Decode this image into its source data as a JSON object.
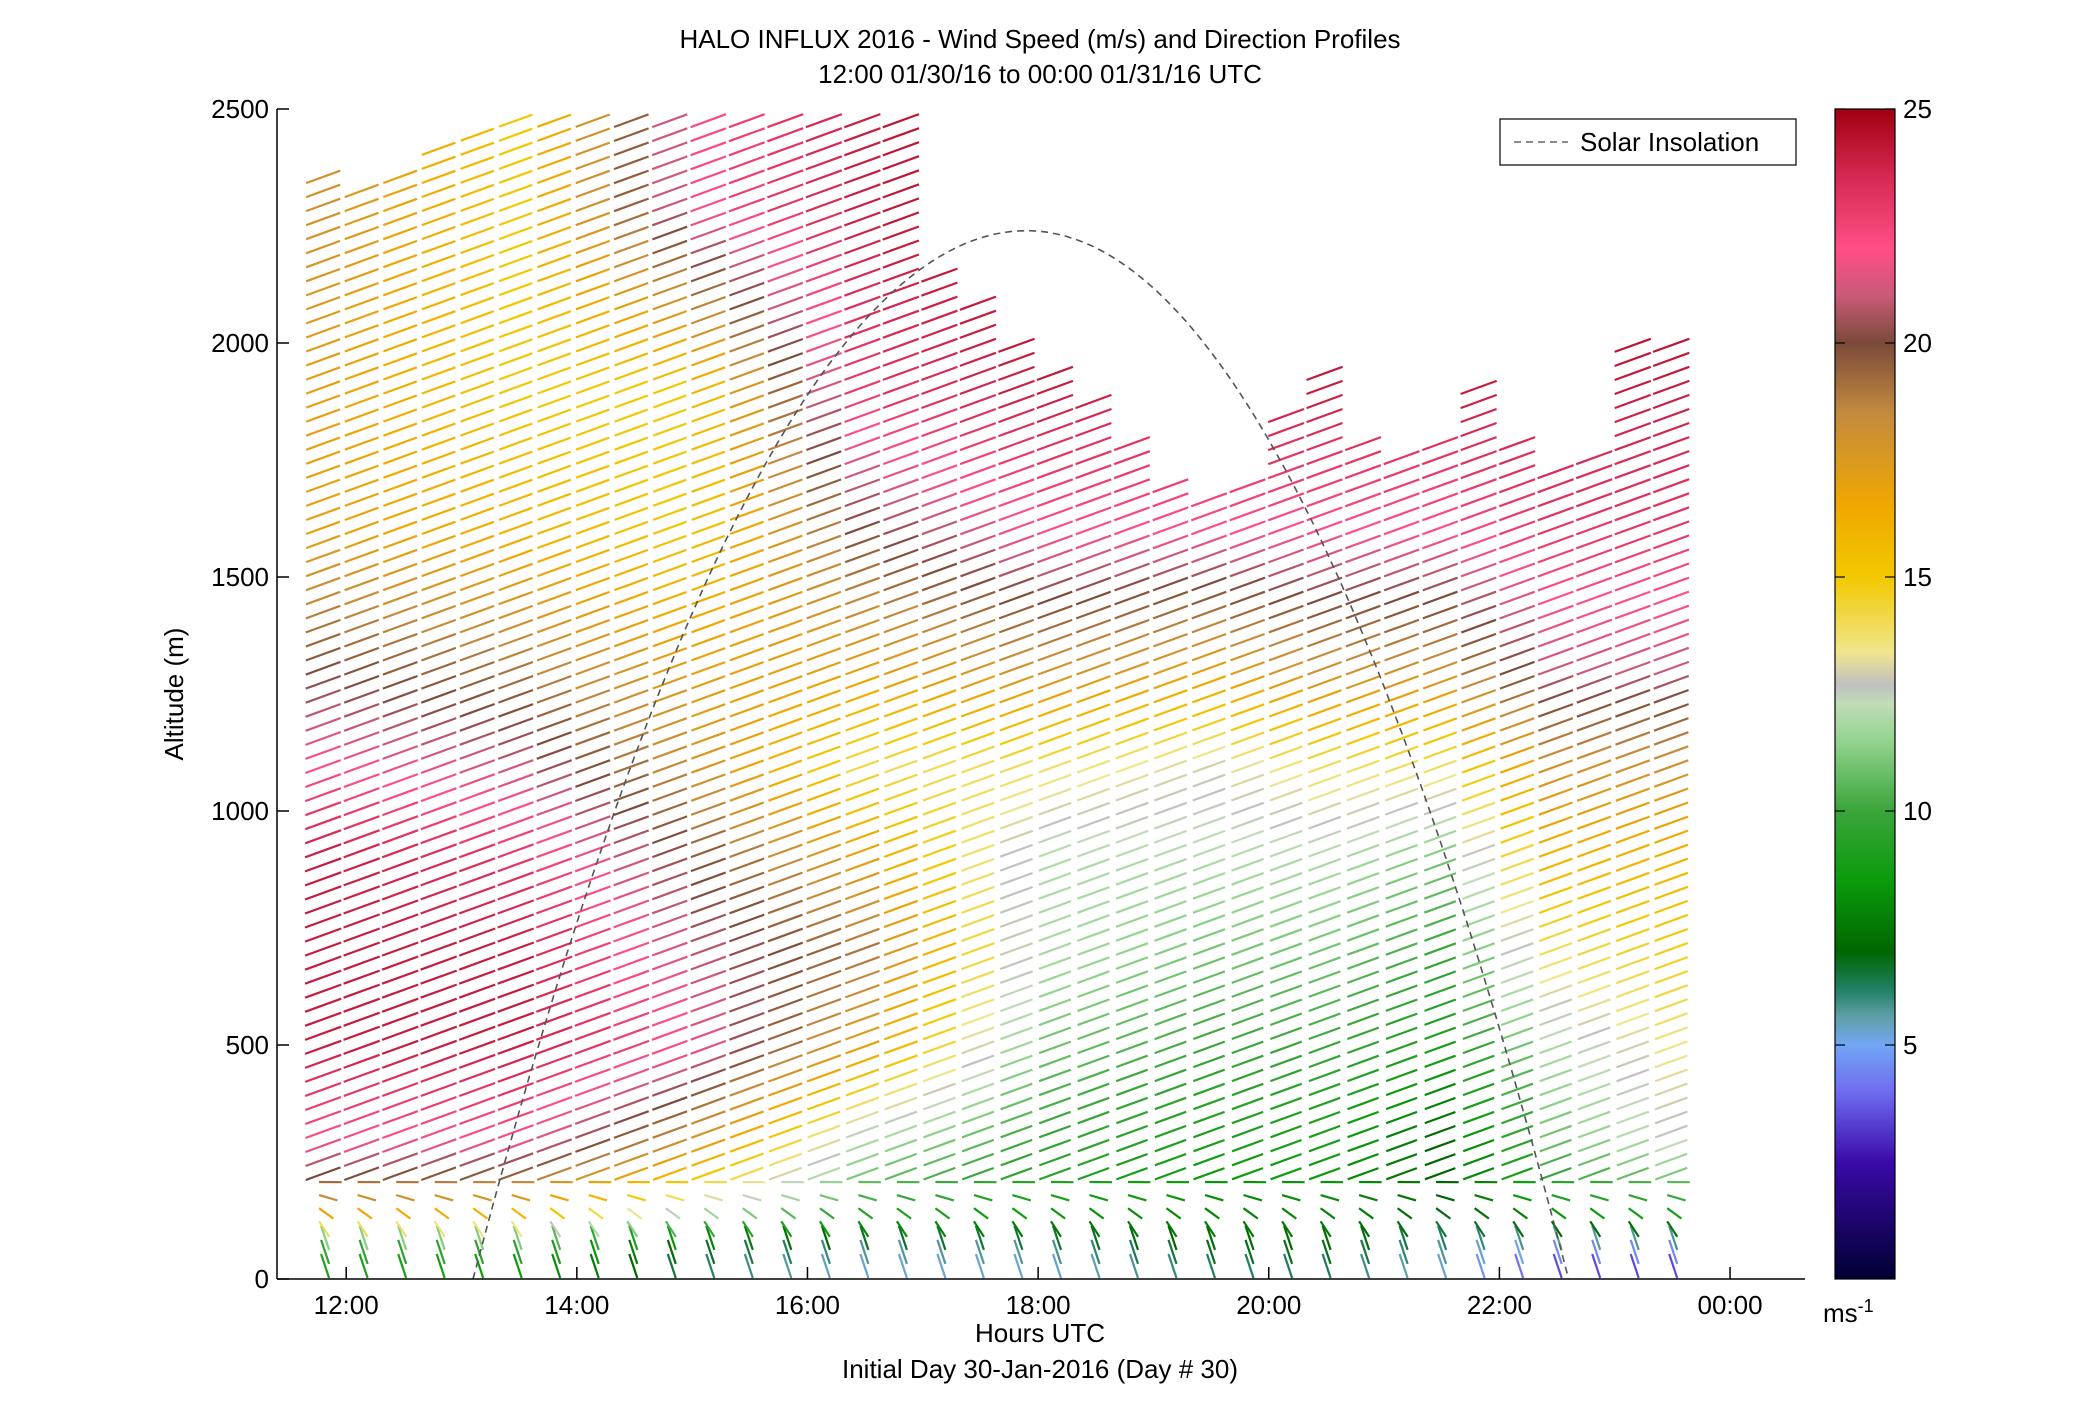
{
  "chart_data": {
    "type": "wind-barb-profile",
    "title": "HALO INFLUX 2016 - Wind Speed (m/s) and Direction Profiles",
    "subtitle": "12:00 01/30/16 to 00:00 01/31/16  UTC",
    "xlabel": "Hours UTC",
    "xsublabel": "Initial Day 30-Jan-2016 (Day # 30)",
    "ylabel": "Altitude (m)",
    "xlim_hours": [
      11.4,
      24.65
    ],
    "ylim": [
      0,
      2500
    ],
    "x_ticks": [
      {
        "hour": 12,
        "label": "12:00"
      },
      {
        "hour": 14,
        "label": "14:00"
      },
      {
        "hour": 16,
        "label": "16:00"
      },
      {
        "hour": 18,
        "label": "18:00"
      },
      {
        "hour": 20,
        "label": "20:00"
      },
      {
        "hour": 22,
        "label": "22:00"
      },
      {
        "hour": 24,
        "label": "00:00"
      }
    ],
    "y_ticks": [
      {
        "value": 0,
        "label": "0"
      },
      {
        "value": 500,
        "label": "500"
      },
      {
        "value": 1000,
        "label": "1000"
      },
      {
        "value": 1500,
        "label": "1500"
      },
      {
        "value": 2000,
        "label": "2000"
      },
      {
        "value": 2500,
        "label": "2500"
      }
    ],
    "legend": {
      "entry": "Solar Insolation",
      "style": "dashed",
      "color": "#777777",
      "placement": "top-right"
    },
    "solar_insolation_curve": {
      "start_hour": 13.1,
      "peak_hour": 17.9,
      "peak_altitude": 2240,
      "end_hour": 22.6,
      "end_altitude": 0
    },
    "colorbar": {
      "min": 0,
      "max": 25,
      "ticks": [
        {
          "value": 5,
          "label": "5"
        },
        {
          "value": 10,
          "label": "10"
        },
        {
          "value": 15,
          "label": "15"
        },
        {
          "value": 20,
          "label": "20"
        },
        {
          "value": 25,
          "label": "25"
        }
      ],
      "unit_label": "ms",
      "unit_superscript": "-1",
      "stops": [
        {
          "v": 0,
          "color": "#000033"
        },
        {
          "v": 2.5,
          "color": "#3a0aa8"
        },
        {
          "v": 4,
          "color": "#6f6cf0"
        },
        {
          "v": 5,
          "color": "#72a6f5"
        },
        {
          "v": 5.6,
          "color": "#5fa0a8"
        },
        {
          "v": 6.2,
          "color": "#1f7f62"
        },
        {
          "v": 7,
          "color": "#006600"
        },
        {
          "v": 8.5,
          "color": "#0b9b0b"
        },
        {
          "v": 10,
          "color": "#3aa53a"
        },
        {
          "v": 11.5,
          "color": "#93d48f"
        },
        {
          "v": 12.3,
          "color": "#c1dcb8"
        },
        {
          "v": 12.7,
          "color": "#c0c0c0"
        },
        {
          "v": 13.4,
          "color": "#f0e68c"
        },
        {
          "v": 15,
          "color": "#f2c800"
        },
        {
          "v": 16.5,
          "color": "#f0a800"
        },
        {
          "v": 18.5,
          "color": "#c48a3f"
        },
        {
          "v": 20,
          "color": "#7a4a3a"
        },
        {
          "v": 21,
          "color": "#c85a78"
        },
        {
          "v": 22,
          "color": "#ff4f86"
        },
        {
          "v": 23.5,
          "color": "#d82a55"
        },
        {
          "v": 25,
          "color": "#a00010"
        }
      ]
    },
    "wind_profile_model": {
      "start_hour": 11.8,
      "end_hour": 23.8,
      "profile_interval_hours": 0.334,
      "altitude_step_m": 30,
      "altitude_max_m": 2500,
      "top_of_data_m": [
        [
          11.8,
          2360
        ],
        [
          12.2,
          2340
        ],
        [
          12.8,
          2440
        ],
        [
          13.4,
          2500
        ],
        [
          15.0,
          2500
        ],
        [
          16.8,
          2490
        ],
        [
          17.1,
          2180
        ],
        [
          17.4,
          2140
        ],
        [
          17.8,
          2010
        ],
        [
          18.4,
          1900
        ],
        [
          19.0,
          1740
        ],
        [
          19.4,
          1660
        ],
        [
          19.8,
          1710
        ],
        [
          20.1,
          1830
        ],
        [
          20.4,
          2050
        ],
        [
          20.6,
          1840
        ],
        [
          21.0,
          1740
        ],
        [
          21.4,
          1790
        ],
        [
          21.8,
          1900
        ],
        [
          21.9,
          2010
        ],
        [
          22.2,
          1750
        ],
        [
          22.8,
          1760
        ],
        [
          23.0,
          1880
        ],
        [
          23.2,
          2030
        ],
        [
          23.8,
          2010
        ]
      ],
      "speed_anchors_hours": [
        11.8,
        13.5,
        15.0,
        16.5,
        18.0,
        19.5,
        20.5,
        21.5,
        22.5,
        23.8
      ],
      "speed_anchors_alt_m": [
        0,
        60,
        150,
        300,
        500,
        700,
        900,
        1100,
        1300,
        1600,
        1900,
        2300
      ],
      "speed_grid_ms": [
        [
          9,
          10,
          18,
          22,
          24,
          24,
          24,
          22,
          20,
          17,
          17,
          18
        ],
        [
          8,
          10,
          17,
          22,
          24,
          24,
          23,
          21,
          19,
          16,
          15,
          15
        ],
        [
          6,
          7,
          13,
          18,
          22,
          21,
          20,
          18,
          17,
          15,
          15,
          22
        ],
        [
          5,
          6,
          10,
          12,
          17,
          19,
          17,
          14,
          17,
          20,
          23,
          24
        ],
        [
          5,
          6,
          9,
          10,
          11,
          12,
          12,
          14,
          18,
          22,
          24,
          25
        ],
        [
          6,
          7,
          8,
          9,
          10,
          11,
          12,
          13,
          17,
          22,
          24,
          25
        ],
        [
          6,
          7,
          8,
          9,
          10,
          11,
          12,
          14,
          18,
          22,
          24,
          25
        ],
        [
          5,
          6,
          7,
          7,
          9,
          10,
          11,
          14,
          18,
          22,
          24,
          25
        ],
        [
          3,
          5,
          9,
          11,
          12,
          14,
          16,
          18,
          21,
          23,
          24,
          25
        ],
        [
          3,
          5,
          10,
          13,
          14,
          15,
          16,
          18,
          21,
          23,
          24,
          25
        ]
      ]
    }
  }
}
